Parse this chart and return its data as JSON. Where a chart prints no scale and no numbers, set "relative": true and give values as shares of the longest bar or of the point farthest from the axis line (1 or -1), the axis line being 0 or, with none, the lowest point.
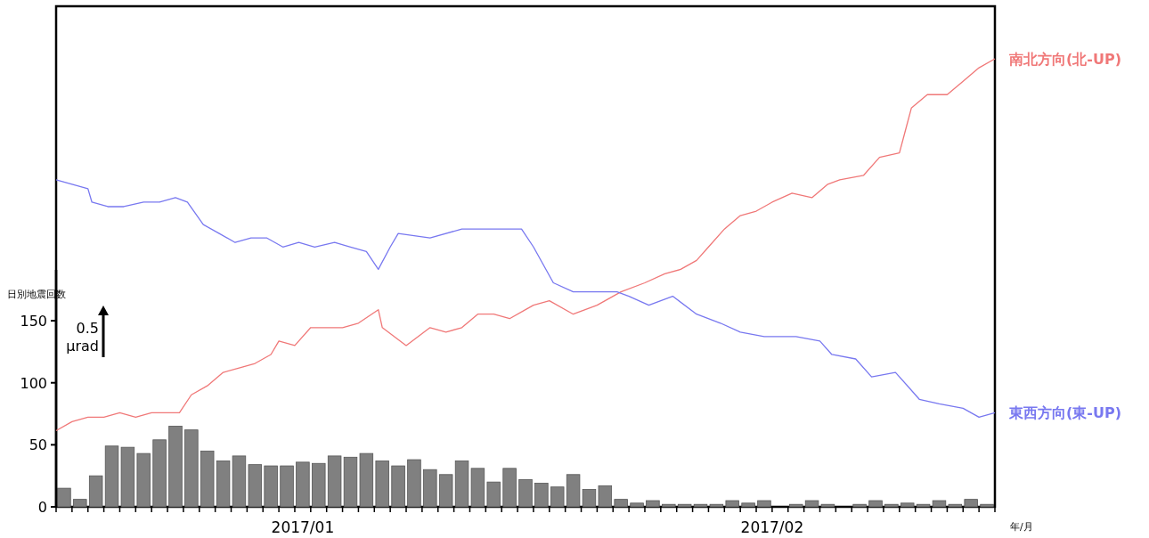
{
  "chart_data": [
    {
      "type": "bar",
      "ylabel": "日別地震回数",
      "xlabel": "年/月",
      "color": "#808080",
      "x": [
        "2017-01-01T12:00",
        "2017-01-02T12:00",
        "2017-01-03T12:00",
        "2017-01-04T12:00",
        "2017-01-05T12:00",
        "2017-01-06T12:00",
        "2017-01-07T12:00",
        "2017-01-08T12:00",
        "2017-01-09T12:00",
        "2017-01-10T12:00",
        "2017-01-11T12:00",
        "2017-01-12T12:00",
        "2017-01-13T12:00",
        "2017-01-14T12:00",
        "2017-01-15T12:00",
        "2017-01-16T12:00",
        "2017-01-17T12:00",
        "2017-01-18T12:00",
        "2017-01-19T12:00",
        "2017-01-20T12:00",
        "2017-01-21T12:00",
        "2017-01-22T12:00",
        "2017-01-23T12:00",
        "2017-01-24T12:00",
        "2017-01-25T12:00",
        "2017-01-26T12:00",
        "2017-01-27T12:00",
        "2017-01-28T12:00",
        "2017-01-29T12:00",
        "2017-01-30T12:00",
        "2017-01-31T12:00",
        "2017-02-01T12:00",
        "2017-02-02T12:00",
        "2017-02-03T12:00",
        "2017-02-04T12:00",
        "2017-02-05T12:00",
        "2017-02-06T12:00",
        "2017-02-07T12:00",
        "2017-02-08T12:00",
        "2017-02-09T12:00",
        "2017-02-10T12:00",
        "2017-02-11T12:00",
        "2017-02-12T12:00",
        "2017-02-13T12:00",
        "2017-02-14T12:00",
        "2017-02-15T12:00",
        "2017-02-16T12:00",
        "2017-02-17T12:00",
        "2017-02-18T12:00",
        "2017-02-19T12:00",
        "2017-02-20T12:00",
        "2017-02-21T12:00",
        "2017-02-22T12:00",
        "2017-02-23T12:00",
        "2017-02-24T12:00",
        "2017-02-25T12:00",
        "2017-02-26T12:00",
        "2017-02-27T12:00",
        "2017-02-28T12:00"
      ],
      "values": [
        15,
        6,
        25,
        49,
        48,
        43,
        54,
        65,
        62,
        45,
        37,
        41,
        34,
        33,
        33,
        36,
        35,
        41,
        40,
        43,
        37,
        33,
        38,
        30,
        26,
        37,
        31,
        20,
        31,
        22,
        19,
        16,
        26,
        14,
        17,
        6,
        3,
        5,
        2,
        2,
        2,
        2,
        5,
        3,
        5,
        0,
        2,
        5,
        2,
        0,
        2,
        5,
        2,
        3,
        2,
        5,
        2,
        6,
        2
      ],
      "ylim": [
        0,
        191
      ],
      "yticks": [
        0,
        50,
        100,
        150
      ],
      "xlim": [
        "2017-01-01",
        "2017-03-01"
      ],
      "xticks": [
        {
          "value": "2017-01-01",
          "label": null
        },
        {
          "value": "2017-01-02",
          "label": null
        },
        {
          "value": "2017-01-03",
          "label": null
        },
        {
          "value": "2017-01-04",
          "label": null
        },
        {
          "value": "2017-01-05",
          "label": null
        },
        {
          "value": "2017-01-06",
          "label": null
        },
        {
          "value": "2017-01-07",
          "label": null
        },
        {
          "value": "2017-01-08",
          "label": null
        },
        {
          "value": "2017-01-09",
          "label": null
        },
        {
          "value": "2017-01-10",
          "label": null
        },
        {
          "value": "2017-01-11",
          "label": null
        },
        {
          "value": "2017-01-12",
          "label": null
        },
        {
          "value": "2017-01-13",
          "label": null
        },
        {
          "value": "2017-01-14",
          "label": null
        },
        {
          "value": "2017-01-15",
          "label": null
        },
        {
          "value": "2017-01-16",
          "label": null
        },
        {
          "value": "2017-01-16T12:00",
          "label": "2017/01"
        },
        {
          "value": "2017-01-17",
          "label": null
        },
        {
          "value": "2017-01-18",
          "label": null
        },
        {
          "value": "2017-01-19",
          "label": null
        },
        {
          "value": "2017-01-20",
          "label": null
        },
        {
          "value": "2017-01-21",
          "label": null
        },
        {
          "value": "2017-01-22",
          "label": null
        },
        {
          "value": "2017-01-23",
          "label": null
        },
        {
          "value": "2017-01-24",
          "label": null
        },
        {
          "value": "2017-01-25",
          "label": null
        },
        {
          "value": "2017-01-26",
          "label": null
        },
        {
          "value": "2017-01-27",
          "label": null
        },
        {
          "value": "2017-01-28",
          "label": null
        },
        {
          "value": "2017-01-29",
          "label": null
        },
        {
          "value": "2017-01-30",
          "label": null
        },
        {
          "value": "2017-01-31",
          "label": null
        },
        {
          "value": "2017-02-01",
          "label": null
        },
        {
          "value": "2017-02-02",
          "label": null
        },
        {
          "value": "2017-02-03",
          "label": null
        },
        {
          "value": "2017-02-04",
          "label": null
        },
        {
          "value": "2017-02-05",
          "label": null
        },
        {
          "value": "2017-02-06",
          "label": null
        },
        {
          "value": "2017-02-07",
          "label": null
        },
        {
          "value": "2017-02-08",
          "label": null
        },
        {
          "value": "2017-02-09",
          "label": null
        },
        {
          "value": "2017-02-10",
          "label": null
        },
        {
          "value": "2017-02-11",
          "label": null
        },
        {
          "value": "2017-02-12",
          "label": null
        },
        {
          "value": "2017-02-13",
          "label": null
        },
        {
          "value": "2017-02-14",
          "label": null
        },
        {
          "value": "2017-02-15",
          "label": null
        },
        {
          "value": "2017-02-15T00:00",
          "label": "2017/02"
        },
        {
          "value": "2017-02-16",
          "label": null
        },
        {
          "value": "2017-02-17",
          "label": null
        },
        {
          "value": "2017-02-18",
          "label": null
        },
        {
          "value": "2017-02-19",
          "label": null
        },
        {
          "value": "2017-02-20",
          "label": null
        },
        {
          "value": "2017-02-21",
          "label": null
        },
        {
          "value": "2017-02-22",
          "label": null
        },
        {
          "value": "2017-02-23",
          "label": null
        },
        {
          "value": "2017-02-24",
          "label": null
        },
        {
          "value": "2017-02-25",
          "label": null
        },
        {
          "value": "2017-02-26",
          "label": null
        },
        {
          "value": "2017-02-27",
          "label": null
        },
        {
          "value": "2017-02-28",
          "label": null
        },
        {
          "value": "2017-03-01",
          "label": null
        }
      ]
    },
    {
      "type": "line",
      "relative": true,
      "xlim": [
        "2017-01-01",
        "2017-03-01"
      ],
      "annotations": [
        "0.5 μrad"
      ],
      "series": [
        {
          "name": "南北方向(北-UP)",
          "color": "#f07878",
          "x": [
            "2017-01-01",
            "2017-01-02",
            "2017-01-03",
            "2017-01-04",
            "2017-01-05",
            "2017-01-06",
            "2017-01-07",
            "2017-01-08",
            "2017-01-08T18:00",
            "2017-01-09T12:00",
            "2017-01-10T12:00",
            "2017-01-11T12:00",
            "2017-01-12T12:00",
            "2017-01-13T12:00",
            "2017-01-14T12:00",
            "2017-01-15",
            "2017-01-16",
            "2017-01-17",
            "2017-01-18",
            "2017-01-19",
            "2017-01-20",
            "2017-01-21T06:00",
            "2017-01-21T12:00",
            "2017-01-23",
            "2017-01-24T12:00",
            "2017-01-25T12:00",
            "2017-01-26T12:00",
            "2017-01-27T12:00",
            "2017-01-28T12:00",
            "2017-01-29T12:00",
            "2017-01-30T12:00",
            "2017-01-31",
            "2017-02-01",
            "2017-02-02T12:00",
            "2017-02-04",
            "2017-02-05T12:00",
            "2017-02-07",
            "2017-02-08T06:00",
            "2017-02-09T06:00",
            "2017-02-10T06:00",
            "2017-02-11",
            "2017-02-12",
            "2017-02-13",
            "2017-02-14",
            "2017-02-15",
            "2017-02-16T06:00",
            "2017-02-17T12:00",
            "2017-02-18T12:00",
            "2017-02-19T06:00",
            "2017-02-20T18:00",
            "2017-02-21T18:00",
            "2017-02-23",
            "2017-02-23T18:00",
            "2017-02-24T18:00",
            "2017-02-26",
            "2017-02-27",
            "2017-02-28",
            "2017-03-01"
          ],
          "values": [
            0.17,
            0.19,
            0.2,
            0.2,
            0.21,
            0.2,
            0.21,
            0.21,
            0.21,
            0.25,
            0.27,
            0.3,
            0.31,
            0.32,
            0.34,
            0.37,
            0.36,
            0.4,
            0.4,
            0.4,
            0.41,
            0.44,
            0.4,
            0.36,
            0.4,
            0.39,
            0.4,
            0.43,
            0.43,
            0.42,
            0.44,
            0.45,
            0.46,
            0.43,
            0.45,
            0.48,
            0.5,
            0.52,
            0.53,
            0.55,
            0.58,
            0.62,
            0.65,
            0.66,
            0.68,
            0.7,
            0.69,
            0.72,
            0.73,
            0.74,
            0.78,
            0.79,
            0.89,
            0.92,
            0.92,
            0.95,
            0.98,
            1
          ]
        },
        {
          "name": "東西方向(東-UP)",
          "color": "#7878f0",
          "x": [
            "2017-01-01",
            "2017-01-02",
            "2017-01-03",
            "2017-01-03T06:00",
            "2017-01-04T06:00",
            "2017-01-05T06:00",
            "2017-01-06T12:00",
            "2017-01-07T12:00",
            "2017-01-08T12:00",
            "2017-01-09T06:00",
            "2017-01-10T06:00",
            "2017-01-11T06:00",
            "2017-01-12T06:00",
            "2017-01-13T06:00",
            "2017-01-14T06:00",
            "2017-01-15T06:00",
            "2017-01-16T06:00",
            "2017-01-17T06:00",
            "2017-01-18T12:00",
            "2017-01-19T12:00",
            "2017-01-20T12:00",
            "2017-01-21T06:00",
            "2017-01-22",
            "2017-01-22T12:00",
            "2017-01-24T12:00",
            "2017-01-26T12:00",
            "2017-01-28T12:00",
            "2017-01-30T06:00",
            "2017-01-31",
            "2017-02-01T06:00",
            "2017-02-02T12:00",
            "2017-02-04",
            "2017-02-05T06:00",
            "2017-02-06",
            "2017-02-07T06:00",
            "2017-02-08T18:00",
            "2017-02-10T06:00",
            "2017-02-11T18:00",
            "2017-02-13",
            "2017-02-14T12:00",
            "2017-02-16T12:00",
            "2017-02-18",
            "2017-02-18T18:00",
            "2017-02-20T06:00",
            "2017-02-21T06:00",
            "2017-02-22T18:00",
            "2017-02-24T06:00",
            "2017-02-25T12:00",
            "2017-02-27",
            "2017-02-28",
            "2017-03-01"
          ],
          "values": [
            0.73,
            0.72,
            0.71,
            0.68,
            0.67,
            0.67,
            0.68,
            0.68,
            0.69,
            0.68,
            0.63,
            0.61,
            0.59,
            0.6,
            0.6,
            0.58,
            0.59,
            0.58,
            0.59,
            0.58,
            0.57,
            0.53,
            0.58,
            0.61,
            0.6,
            0.62,
            0.62,
            0.62,
            0.58,
            0.5,
            0.48,
            0.48,
            0.48,
            0.47,
            0.45,
            0.47,
            0.43,
            0.41,
            0.39,
            0.38,
            0.38,
            0.37,
            0.34,
            0.33,
            0.29,
            0.3,
            0.24,
            0.23,
            0.22,
            0.2,
            0.21
          ]
        }
      ]
    }
  ]
}
